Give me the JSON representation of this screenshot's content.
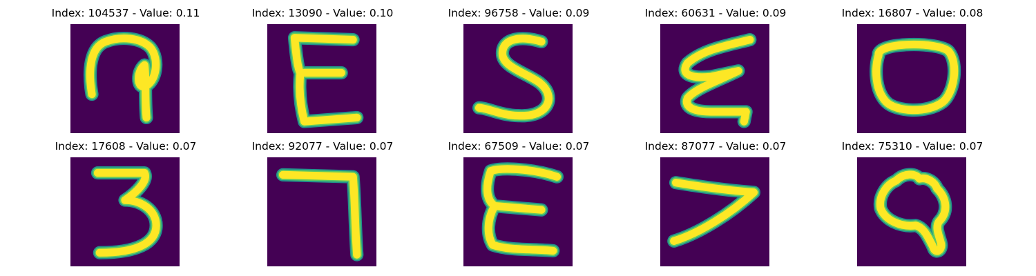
{
  "colors": {
    "background": "#440154",
    "glow": "#21918c",
    "stroke": "#fde725",
    "edge": "#5ec962"
  },
  "panels": [
    {
      "title": "Index: 104537 - Value: 0.11",
      "glyph": "hook-loop"
    },
    {
      "title": "Index: 13090 - Value: 0.10",
      "glyph": "e-shape"
    },
    {
      "title": "Index: 96758 - Value: 0.09",
      "glyph": "s-shape"
    },
    {
      "title": "Index: 60631 - Value: 0.09",
      "glyph": "zigzag-e"
    },
    {
      "title": "Index: 16807 - Value: 0.08",
      "glyph": "o-shape"
    },
    {
      "title": "Index: 17608 - Value: 0.07",
      "glyph": "three-shape"
    },
    {
      "title": "Index: 92077 - Value: 0.07",
      "glyph": "seven-shape"
    },
    {
      "title": "Index: 67509 - Value: 0.07",
      "glyph": "e-shape-2"
    },
    {
      "title": "Index: 87077 - Value: 0.07",
      "glyph": "angle-shape"
    },
    {
      "title": "Index: 75310 - Value: 0.07",
      "glyph": "knot-shape"
    }
  ]
}
